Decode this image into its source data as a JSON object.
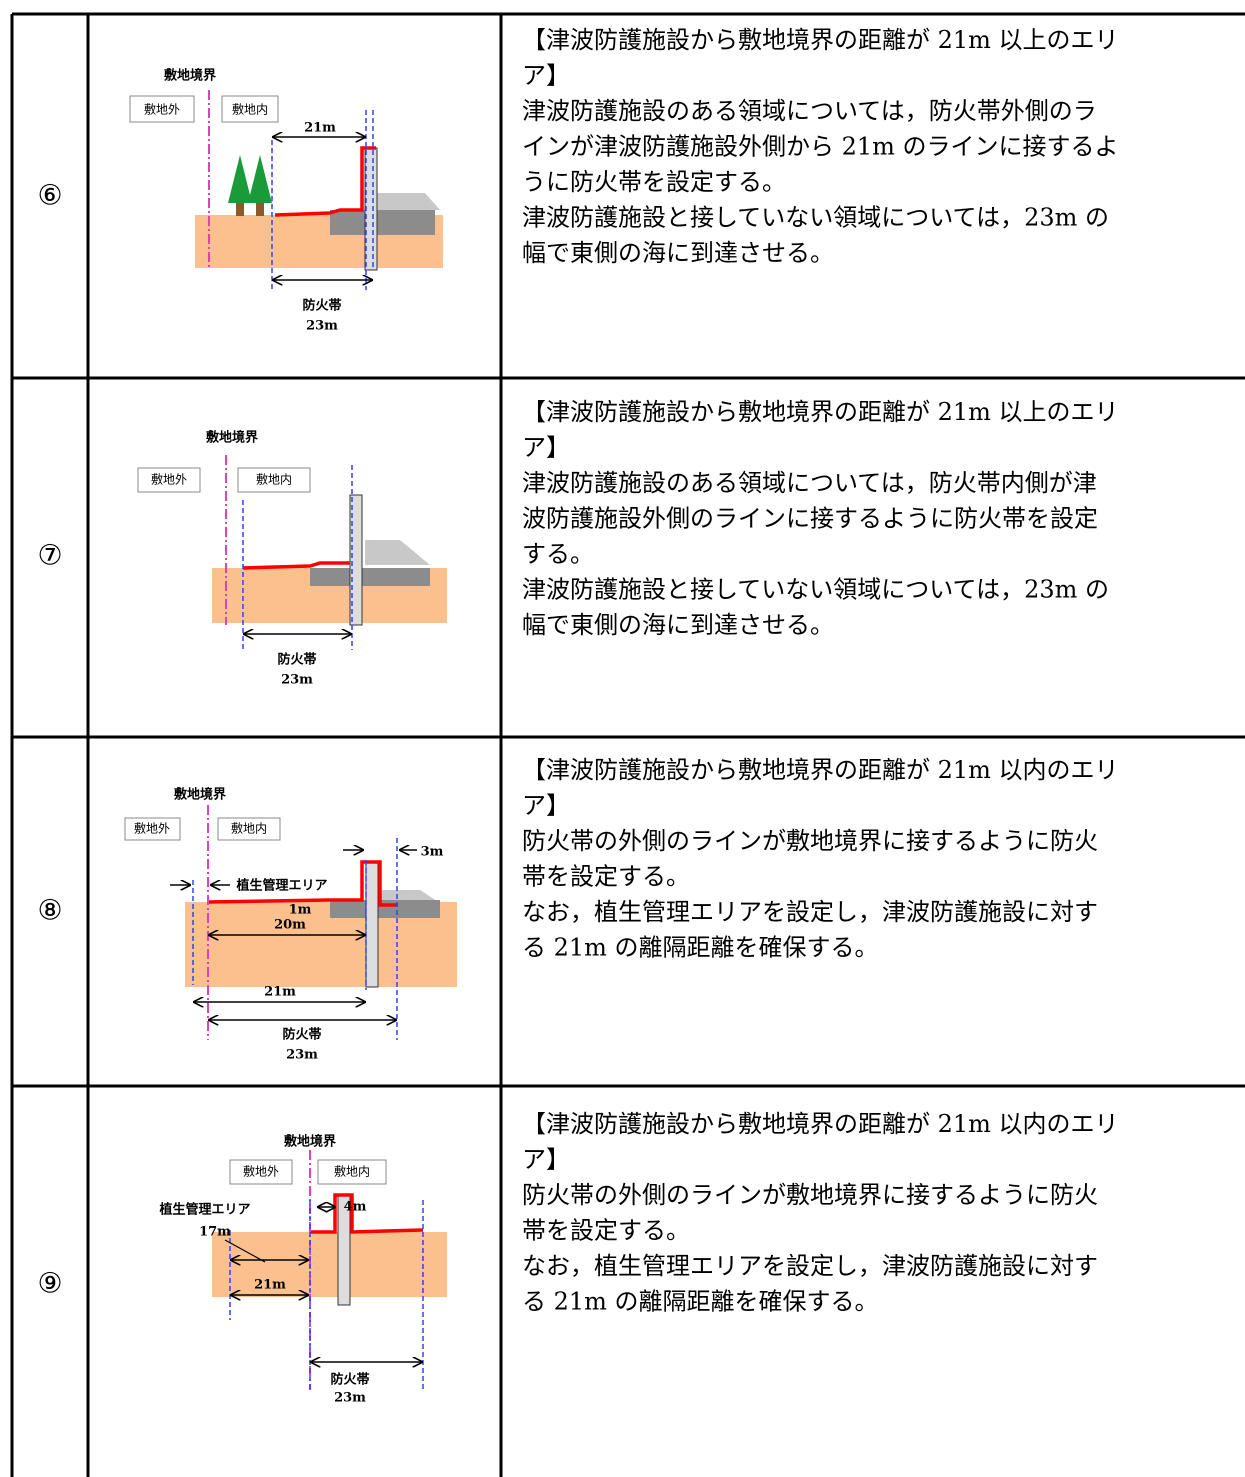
{
  "rows": [
    {
      "number": "⑥",
      "diagram": {
        "boundary": "敷地境界",
        "outside": "敷地外",
        "inside": "敷地内",
        "distance": "21m",
        "zone": "防火帯",
        "zone_width": "23m"
      },
      "text": [
        "【津波防護施設から敷地境界の距離が 21m 以上のエリ",
        "ア】",
        "津波防護施設のある領域については，防火帯外側のラ",
        "インが津波防護施設外側から 21m のラインに接するよ",
        "うに防火帯を設定する。",
        "津波防護施設と接していない領域については，23m の",
        "幅で東側の海に到達させる。"
      ]
    },
    {
      "number": "⑦",
      "diagram": {
        "boundary": "敷地境界",
        "outside": "敷地外",
        "inside": "敷地内",
        "zone": "防火帯",
        "zone_width": "23m"
      },
      "text": [
        "【津波防護施設から敷地境界の距離が 21m 以上のエリ",
        "ア】",
        "津波防護施設のある領域については，防火帯内側が津",
        "波防護施設外側のラインに接するように防火帯を設定",
        "する。",
        "津波防護施設と接していない領域については，23m の",
        "幅で東側の海に到達させる。"
      ]
    },
    {
      "number": "⑧",
      "diagram": {
        "boundary": "敷地境界",
        "outside": "敷地外",
        "inside": "敷地内",
        "wall_gap": "3m",
        "vegetation": "植生管理エリア",
        "vegetation_width": "1m",
        "inner_distance": "20m",
        "distance": "21m",
        "zone": "防火帯",
        "zone_width": "23m"
      },
      "text": [
        "【津波防護施設から敷地境界の距離が 21m 以内のエリ",
        "ア】",
        "防火帯の外側のラインが敷地境界に接するように防火",
        "帯を設定する。",
        "なお，植生管理エリアを設定し，津波防護施設に対す",
        "る 21m の離隔距離を確保する。"
      ]
    },
    {
      "number": "⑨",
      "diagram": {
        "boundary": "敷地境界",
        "outside": "敷地外",
        "inside": "敷地内",
        "vegetation": "植生管理エリア",
        "vegetation_width": "17m",
        "wall_gap": "4m",
        "distance": "21m",
        "zone": "防火帯",
        "zone_width": "23m"
      },
      "text": [
        "【津波防護施設から敷地境界の距離が 21m 以内のエリ",
        "ア】",
        "防火帯の外側のラインが敷地境界に接するように防火",
        "帯を設定する。",
        "なお，植生管理エリアを設定し，津波防護施設に対す",
        "る 21m の離隔距離を確保する。"
      ]
    }
  ]
}
